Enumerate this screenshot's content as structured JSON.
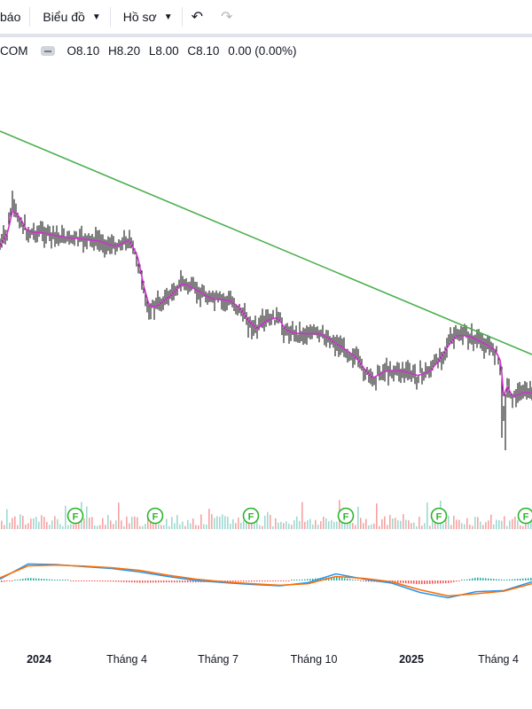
{
  "toolbar": {
    "alert_partial": "báo",
    "chart_menu": "Biểu đồ",
    "profile_menu": "Hồ sơ",
    "undo_icon": "undo-icon",
    "redo_icon": "redo-icon"
  },
  "legend": {
    "symbol_partial": "COM",
    "open": "O8.10",
    "high": "H8.20",
    "low": "L8.00",
    "close": "C8.10",
    "change": "0.00 (0.00%)"
  },
  "colors": {
    "candle": "#000000",
    "ma": "#cc33cc",
    "trendline": "#4caf50",
    "macd": "#2196f3",
    "signal": "#ff6d00",
    "hist_up": "#26a69a",
    "hist_down": "#ef5350",
    "event_badge": "#2cb52c"
  },
  "chart_data": {
    "type": "line",
    "x_axis_labels": [
      "2024",
      "Tháng 4",
      "Tháng 7",
      "Tháng 10",
      "2025",
      "Tháng 4"
    ],
    "event_badge_label": "F",
    "event_badge_count": 6,
    "series": [
      {
        "values": [
          1.05,
          1.62,
          1.6,
          1.52,
          1.45,
          1.32,
          1.15,
          1.0,
          0.92,
          0.85,
          0.8,
          0.92,
          1.25,
          1.05,
          0.9,
          0.55,
          0.35,
          0.58,
          0.62,
          0.95
        ]
      },
      {
        "values": [
          1.1,
          1.55,
          1.58,
          1.54,
          1.48,
          1.38,
          1.2,
          1.05,
          0.95,
          0.88,
          0.82,
          0.88,
          1.15,
          1.08,
          0.95,
          0.65,
          0.42,
          0.5,
          0.6,
          0.88
        ]
      }
    ]
  }
}
